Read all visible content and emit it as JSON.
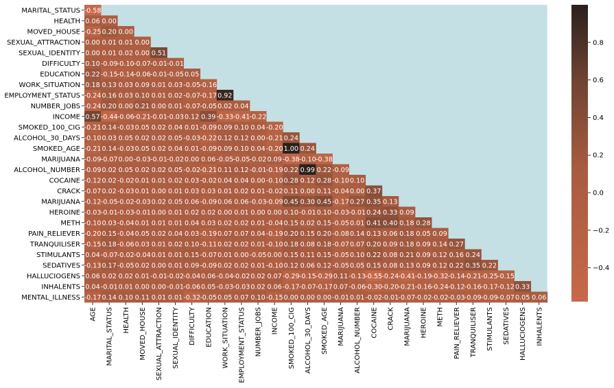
{
  "chart_data": {
    "type": "heatmap",
    "title": "",
    "xlabel": "",
    "ylabel": "",
    "y_labels": [
      "MARITAL_STATUS",
      "HEALTH",
      "MOVED_HOUSE",
      "SEXUAL_ATTRACTION",
      "SEXUAL_IDENTITY",
      "DIFFICULTY",
      "EDUCATION",
      "WORK_SITUATION",
      "EMPLOYMENT_STATUS",
      "NUMBER_JOBS",
      "INCOME",
      "SMOKED_100_CIG",
      "ALCOHOL_30_DAYS",
      "SMOKED_AGE",
      "MARIJUANA",
      "ALCOHOL_NUMBER",
      "COCAINE",
      "CRACK",
      "MARIJUANA",
      "HEROINE",
      "METH",
      "PAIN_RELIEVER",
      "TRANQUILISER",
      "STIMULANTS",
      "SEDATIVES",
      "HALLUCIOGENS",
      "INHALENTS",
      "MENTAL_ILLNESS"
    ],
    "x_labels": [
      "AGE",
      "MARITAL_STATUS",
      "HEALTH",
      "MOVED_HOUSE",
      "SEXUAL_ATTRACTION",
      "SEXUAL_IDENTITY",
      "DIFFICULTY",
      "EDUCATION",
      "WORK_SITUATION",
      "EMPLOYMENT_STATUS",
      "NUMBER_JOBS",
      "INCOME",
      "SMOKED_100_CIG",
      "ALCOHOL_30_DAYS",
      "SMOKED_AGE",
      "MARIJUANA",
      "ALCOHOL_NUMBER",
      "COCAINE",
      "CRACK",
      "MARIJUANA",
      "HEROINE",
      "METH",
      "PAIN_RELIEVER",
      "TRANQUILISER",
      "STIMULANTS",
      "SEDATIVES",
      "HALLUCIOGENS",
      "INHALENTS"
    ],
    "values": [
      [
        -0.58
      ],
      [
        0.06,
        0.0
      ],
      [
        -0.25,
        0.2,
        0.0
      ],
      [
        0.0,
        0.01,
        0.01,
        0.0
      ],
      [
        0.0,
        0.01,
        0.02,
        0.0,
        0.51
      ],
      [
        0.1,
        -0.09,
        -0.1,
        -0.07,
        -0.01,
        -0.01
      ],
      [
        0.22,
        -0.15,
        -0.14,
        -0.06,
        -0.01,
        -0.05,
        0.05
      ],
      [
        0.18,
        0.13,
        0.03,
        0.09,
        0.01,
        0.03,
        -0.05,
        -0.16
      ],
      [
        -0.24,
        0.16,
        0.03,
        0.1,
        0.01,
        0.02,
        -0.07,
        -0.17,
        0.92
      ],
      [
        -0.24,
        0.2,
        -0.0,
        0.21,
        0.0,
        0.01,
        -0.07,
        -0.05,
        0.02,
        0.04
      ],
      [
        0.57,
        -0.44,
        -0.06,
        -0.21,
        -0.01,
        -0.03,
        0.12,
        0.39,
        -0.33,
        -0.41,
        -0.22
      ],
      [
        -0.21,
        0.14,
        -0.03,
        0.05,
        0.02,
        0.04,
        0.01,
        -0.09,
        0.09,
        0.1,
        0.04,
        -0.2
      ],
      [
        -0.1,
        0.03,
        0.05,
        0.02,
        0.02,
        0.05,
        -0.03,
        -0.22,
        0.12,
        0.12,
        -0.0,
        -0.21,
        0.24
      ],
      [
        -0.21,
        0.14,
        -0.03,
        0.05,
        0.02,
        0.04,
        0.01,
        -0.09,
        0.09,
        0.1,
        0.04,
        -0.2,
        1.0,
        0.24
      ],
      [
        -0.09,
        -0.07,
        0.0,
        -0.03,
        -0.01,
        -0.02,
        0.0,
        0.06,
        -0.05,
        -0.05,
        -0.02,
        0.09,
        -0.38,
        -0.1,
        -0.38
      ],
      [
        -0.09,
        0.02,
        0.05,
        0.02,
        0.02,
        0.05,
        -0.02,
        -0.21,
        0.11,
        0.12,
        -0.01,
        -0.19,
        0.22,
        0.99,
        0.22,
        -0.09
      ],
      [
        -0.12,
        0.02,
        -0.02,
        0.01,
        0.01,
        0.02,
        0.03,
        -0.02,
        0.04,
        0.04,
        0.0,
        -0.1,
        0.28,
        0.12,
        0.28,
        -0.1,
        0.1
      ],
      [
        -0.07,
        0.02,
        -0.03,
        0.01,
        0.0,
        0.01,
        0.03,
        0.03,
        0.01,
        0.02,
        0.01,
        -0.02,
        0.11,
        0.0,
        0.11,
        -0.04,
        -0.0,
        0.37
      ],
      [
        -0.12,
        -0.05,
        -0.02,
        -0.03,
        0.02,
        0.05,
        0.06,
        -0.09,
        0.06,
        0.06,
        -0.03,
        -0.09,
        0.45,
        0.3,
        0.45,
        -0.17,
        0.27,
        0.35,
        0.13
      ],
      [
        -0.03,
        -0.01,
        -0.03,
        -0.01,
        0.0,
        0.01,
        0.02,
        0.02,
        -0.0,
        0.01,
        -0.0,
        -0.0,
        0.1,
        -0.01,
        0.1,
        -0.03,
        -0.01,
        0.24,
        0.33,
        0.09
      ],
      [
        -0.1,
        0.03,
        -0.04,
        0.01,
        0.01,
        0.01,
        0.04,
        0.03,
        0.02,
        0.02,
        0.01,
        -0.04,
        0.15,
        0.02,
        0.15,
        -0.05,
        0.01,
        0.41,
        0.4,
        0.18,
        0.28
      ],
      [
        -0.2,
        0.15,
        -0.04,
        0.05,
        0.02,
        0.04,
        0.03,
        -0.19,
        0.07,
        0.07,
        0.04,
        -0.19,
        0.2,
        0.15,
        0.2,
        -0.08,
        0.14,
        0.13,
        0.06,
        0.18,
        0.05,
        0.09
      ],
      [
        -0.15,
        0.18,
        -0.06,
        0.03,
        0.01,
        0.02,
        0.1,
        -0.11,
        0.02,
        0.02,
        0.01,
        -0.1,
        0.18,
        0.08,
        0.18,
        -0.07,
        0.07,
        0.2,
        0.09,
        0.18,
        0.09,
        0.14,
        0.27
      ],
      [
        0.04,
        -0.07,
        -0.02,
        -0.04,
        0.01,
        0.01,
        0.15,
        -0.07,
        0.01,
        0.0,
        -0.05,
        -0.0,
        0.15,
        0.11,
        0.15,
        -0.05,
        0.1,
        0.22,
        0.08,
        0.21,
        0.09,
        0.12,
        0.16,
        0.24
      ],
      [
        -0.13,
        0.17,
        -0.05,
        0.02,
        0.0,
        0.01,
        0.09,
        -0.09,
        0.02,
        0.02,
        0.01,
        -0.1,
        0.12,
        0.06,
        0.12,
        -0.05,
        0.05,
        0.15,
        0.08,
        0.13,
        0.09,
        0.12,
        0.22,
        0.35,
        0.22
      ],
      [
        0.06,
        0.02,
        0.02,
        0.01,
        -0.01,
        -0.02,
        -0.04,
        0.06,
        -0.04,
        -0.02,
        0.02,
        0.07,
        -0.29,
        -0.15,
        -0.29,
        0.11,
        -0.13,
        -0.55,
        -0.24,
        -0.41,
        -0.19,
        -0.32,
        -0.14,
        -0.21,
        -0.25,
        -0.15
      ],
      [
        0.04,
        -0.01,
        0.01,
        0.0,
        -0.0,
        -0.01,
        -0.06,
        0.05,
        -0.03,
        -0.03,
        0.02,
        0.06,
        -0.17,
        -0.07,
        -0.17,
        0.07,
        -0.06,
        -0.3,
        -0.2,
        -0.21,
        -0.16,
        -0.24,
        -0.12,
        -0.16,
        -0.17,
        -0.12,
        0.33
      ],
      [
        -0.17,
        0.14,
        0.1,
        0.11,
        0.01,
        0.01,
        -0.32,
        -0.05,
        0.05,
        0.07,
        0.1,
        -0.15,
        -0.0,
        -0.0,
        -0.0,
        -0.01,
        0.01,
        -0.02,
        -0.01,
        -0.07,
        -0.02,
        -0.02,
        -0.03,
        -0.09,
        -0.09,
        -0.07,
        0.05,
        0.06
      ]
    ],
    "vmin": -0.58,
    "vmax": 1.0,
    "colorbar_ticks": [
      0.8,
      0.6,
      0.4,
      0.2,
      0.0,
      -0.2,
      -0.4
    ],
    "colormap": [
      "#c7694a",
      "#2a201d"
    ],
    "masked_color": "#c4e0e5",
    "legend": "colorbar-right"
  }
}
